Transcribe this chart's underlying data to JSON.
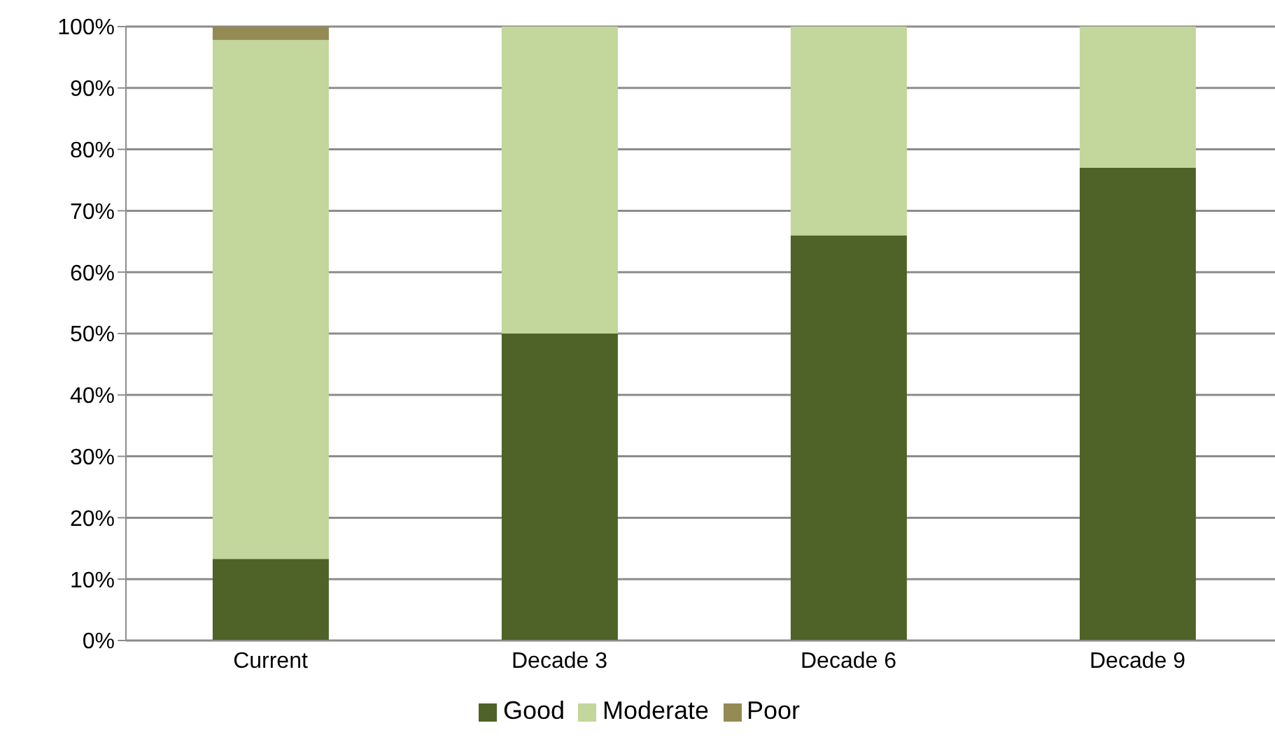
{
  "chart_data": {
    "type": "bar",
    "stacked": true,
    "categories": [
      "Current",
      "Decade 3",
      "Decade 6",
      "Decade 9"
    ],
    "series": [
      {
        "name": "Good",
        "color": "#4f6228",
        "values": [
          13.3,
          50,
          66,
          77
        ]
      },
      {
        "name": "Moderate",
        "color": "#c3d69b",
        "values": [
          84.5,
          50,
          34,
          23
        ]
      },
      {
        "name": "Poor",
        "color": "#948a54",
        "values": [
          2.2,
          0,
          0,
          0
        ]
      }
    ],
    "ylim": [
      0,
      100
    ],
    "yticks": [
      {
        "value": 0,
        "label": "0%"
      },
      {
        "value": 10,
        "label": "10%"
      },
      {
        "value": 20,
        "label": "20%"
      },
      {
        "value": 30,
        "label": "30%"
      },
      {
        "value": 40,
        "label": "40%"
      },
      {
        "value": 50,
        "label": "50%"
      },
      {
        "value": 60,
        "label": "60%"
      },
      {
        "value": 70,
        "label": "70%"
      },
      {
        "value": 80,
        "label": "80%"
      },
      {
        "value": 90,
        "label": "90%"
      },
      {
        "value": 100,
        "label": "100%"
      }
    ],
    "grid": "y",
    "legend": "bottom"
  }
}
